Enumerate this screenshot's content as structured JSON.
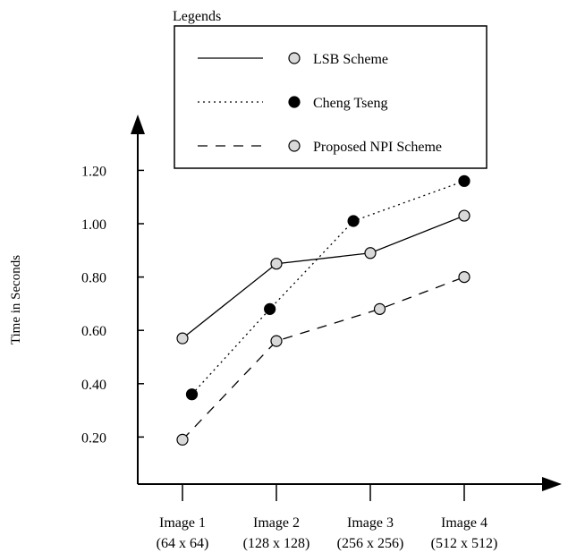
{
  "chart_data": {
    "type": "line",
    "title": "",
    "xlabel": "",
    "ylabel": "Time in Seconds",
    "categories": [
      [
        "Image 1",
        "(64 x 64)"
      ],
      [
        "Image 2",
        "(128 x 128)"
      ],
      [
        "Image 3",
        "(256 x 256)"
      ],
      [
        "Image 4",
        "(512 x 512)"
      ]
    ],
    "y_ticks": [
      "0.20",
      "0.40",
      "0.60",
      "0.80",
      "1.00",
      "1.20"
    ],
    "ylim": [
      0,
      1.4
    ],
    "grid": false,
    "legend": {
      "title": "Legends",
      "placement": "top-right"
    },
    "series": [
      {
        "name": "LSB Scheme",
        "line_style": "solid",
        "marker_fill": "#d9d9d9",
        "points": [
          {
            "x": 1,
            "y": 0.57
          },
          {
            "x": 2,
            "y": 0.85
          },
          {
            "x": 3,
            "y": 0.89
          },
          {
            "x": 4,
            "y": 1.03
          }
        ]
      },
      {
        "name": "Cheng Tseng",
        "line_style": "dotted",
        "marker_fill": "#000000",
        "points": [
          {
            "x": 1.1,
            "y": 0.36
          },
          {
            "x": 1.93,
            "y": 0.68
          },
          {
            "x": 2.82,
            "y": 1.01
          },
          {
            "x": 4,
            "y": 1.16
          }
        ]
      },
      {
        "name": "Proposed NPI Scheme",
        "line_style": "dashed",
        "marker_fill": "#d9d9d9",
        "points": [
          {
            "x": 1,
            "y": 0.19
          },
          {
            "x": 2,
            "y": 0.56
          },
          {
            "x": 3.1,
            "y": 0.68
          },
          {
            "x": 4,
            "y": 0.8
          }
        ]
      }
    ]
  }
}
